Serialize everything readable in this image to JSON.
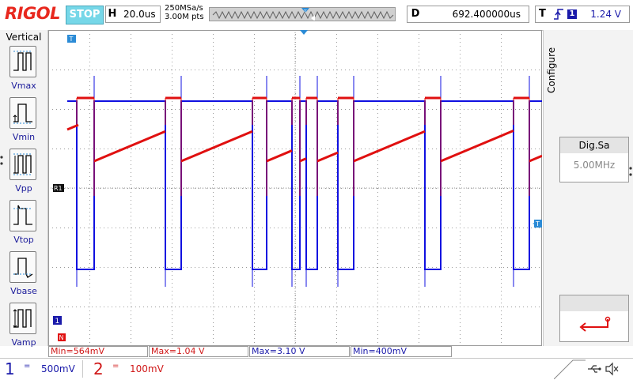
{
  "header": {
    "brand": "RIGOL",
    "run_state": "STOP",
    "horizontal": {
      "key": "H",
      "timebase": "20.0us"
    },
    "sample_rate": "250MSa/s",
    "memory_depth": "3.00M pts",
    "delay": {
      "key": "D",
      "value": "692.400000us"
    },
    "trigger": {
      "key": "T",
      "source": "1",
      "level": "1.24 V"
    }
  },
  "left_menu": {
    "title": "Vertical",
    "items": [
      {
        "label": "Vmax"
      },
      {
        "label": "Vmin"
      },
      {
        "label": "Vpp"
      },
      {
        "label": "Vtop"
      },
      {
        "label": "Vbase"
      },
      {
        "label": "Vamp"
      }
    ]
  },
  "right_menu": {
    "configure_label": "Configure",
    "dig_sa": {
      "title": "Dig.Sa",
      "value": "5.00MHz"
    }
  },
  "markers": {
    "ch1_level": "1",
    "ref": "R1",
    "ch2": "N",
    "trig_marker": "T"
  },
  "measurements": [
    {
      "text": "Min=564mV",
      "color": "#d01818"
    },
    {
      "text": "Max=1.04 V",
      "color": "#d01818"
    },
    {
      "text": "Max=3.10 V",
      "color": "#1a1aaa"
    },
    {
      "text": "Min=400mV",
      "color": "#1a1aaa"
    }
  ],
  "channels": [
    {
      "number": "1",
      "coupling": "=",
      "scale": "500mV",
      "color": "#1a1aaa"
    },
    {
      "number": "2",
      "coupling": "=",
      "scale": "100mV",
      "color": "#d01818"
    }
  ],
  "colors": {
    "ch1": "#1010e0",
    "ch2": "#e01010",
    "grid": "#9a9a9a",
    "accent": "#2b8bd6"
  },
  "status_icons": [
    "usb-icon",
    "speaker-muted-icon"
  ]
}
